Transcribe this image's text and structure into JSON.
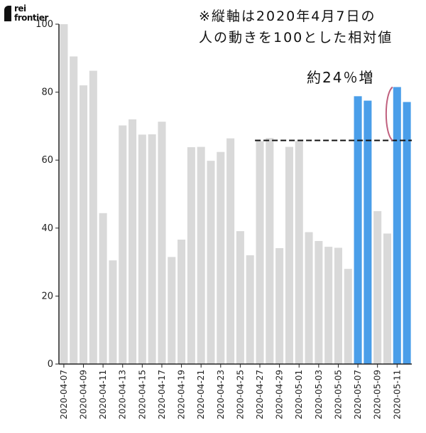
{
  "logo": {
    "line1": "rei",
    "line2": "frontier"
  },
  "notes": [
    "※縦軸は2020年4月7日の",
    "人の動きを100とした相対値"
  ],
  "colors": {
    "bar_default": "#d9d9d9",
    "bar_highlight": "#4a9ee9",
    "annotation_bracket": "#c0607e",
    "reference_line": "#111111"
  },
  "chart_data": {
    "type": "bar",
    "title": "",
    "xlabel": "",
    "ylabel": "",
    "ylim": [
      0,
      100
    ],
    "yticks": [
      0,
      20,
      40,
      60,
      80,
      100
    ],
    "categories": [
      "2020-04-07",
      "2020-04-08",
      "2020-04-09",
      "2020-04-10",
      "2020-04-11",
      "2020-04-12",
      "2020-04-13",
      "2020-04-14",
      "2020-04-15",
      "2020-04-16",
      "2020-04-17",
      "2020-04-18",
      "2020-04-19",
      "2020-04-20",
      "2020-04-21",
      "2020-04-22",
      "2020-04-23",
      "2020-04-24",
      "2020-04-25",
      "2020-04-26",
      "2020-04-27",
      "2020-04-28",
      "2020-04-29",
      "2020-04-30",
      "2020-05-01",
      "2020-05-02",
      "2020-05-03",
      "2020-05-04",
      "2020-05-05",
      "2020-05-06",
      "2020-05-07",
      "2020-05-08",
      "2020-05-09",
      "2020-05-10",
      "2020-05-11",
      "2020-05-12"
    ],
    "x_tick_labels": [
      "2020-04-07",
      "2020-04-09",
      "2020-04-11",
      "2020-04-13",
      "2020-04-15",
      "2020-04-17",
      "2020-04-19",
      "2020-04-21",
      "2020-04-23",
      "2020-04-25",
      "2020-04-27",
      "2020-04-29",
      "2020-05-01",
      "2020-05-03",
      "2020-05-05",
      "2020-05-07",
      "2020-05-09",
      "2020-05-11"
    ],
    "values": [
      100,
      90.5,
      82,
      86.3,
      44.4,
      30.5,
      70.2,
      72,
      67.5,
      67.6,
      71.3,
      31.5,
      36.6,
      63.8,
      63.9,
      59.8,
      62.4,
      66.4,
      39.1,
      32,
      65.6,
      66.5,
      34.1,
      63.9,
      65.6,
      38.8,
      36.2,
      34.5,
      34.2,
      28,
      78.8,
      77.5,
      45,
      38.4,
      81.5,
      77.1
    ],
    "highlighted": [
      "2020-05-07",
      "2020-05-08",
      "2020-05-11",
      "2020-05-12"
    ],
    "reference_line": {
      "value": 65.8,
      "from": "2020-04-27",
      "to": "2020-05-12",
      "style": "dashed"
    },
    "annotation": {
      "text": "約24％増"
    },
    "grid": false,
    "legend": "none"
  }
}
